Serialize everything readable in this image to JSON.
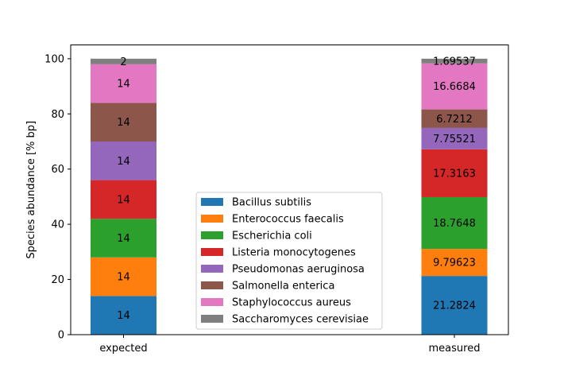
{
  "chart_data": {
    "type": "bar",
    "stacked": true,
    "categories": [
      "expected",
      "measured"
    ],
    "ylabel": "Species abundance [% bp]",
    "xlabel": "",
    "ylim": [
      0,
      105
    ],
    "yticks": [
      0,
      20,
      40,
      60,
      80,
      100
    ],
    "grid": false,
    "legend_position": "lower-center",
    "series": [
      {
        "name": "Bacillus subtilis",
        "color": "#1f77b4",
        "values": [
          14,
          21.2824
        ],
        "labels": [
          "14",
          "21.2824"
        ]
      },
      {
        "name": "Enterococcus faecalis",
        "color": "#ff7f0e",
        "values": [
          14,
          9.79623
        ],
        "labels": [
          "14",
          "9.79623"
        ]
      },
      {
        "name": "Escherichia coli",
        "color": "#2ca02c",
        "values": [
          14,
          18.7648
        ],
        "labels": [
          "14",
          "18.7648"
        ]
      },
      {
        "name": "Listeria monocytogenes",
        "color": "#d62728",
        "values": [
          14,
          17.3163
        ],
        "labels": [
          "14",
          "17.3163"
        ]
      },
      {
        "name": "Pseudomonas aeruginosa",
        "color": "#9467bd",
        "values": [
          14,
          7.75521
        ],
        "labels": [
          "14",
          "7.75521"
        ]
      },
      {
        "name": "Salmonella enterica",
        "color": "#8c564b",
        "values": [
          14,
          6.7212
        ],
        "labels": [
          "14",
          "6.7212"
        ]
      },
      {
        "name": "Staphylococcus aureus",
        "color": "#e377c2",
        "values": [
          14,
          16.6684
        ],
        "labels": [
          "14",
          "16.6684"
        ]
      },
      {
        "name": "Saccharomyces cerevisiae",
        "color": "#7f7f7f",
        "values": [
          2,
          1.69537
        ],
        "labels": [
          "2",
          "1.69537"
        ]
      }
    ]
  }
}
